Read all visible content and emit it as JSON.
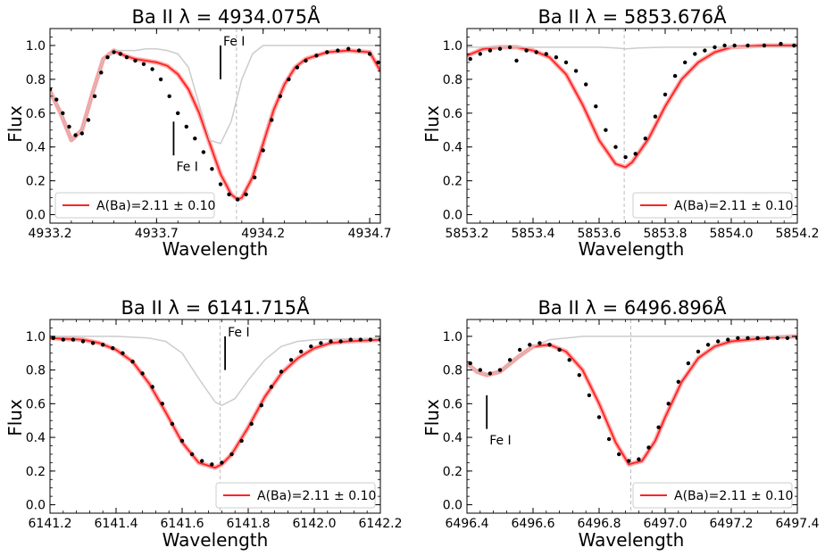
{
  "chart_data": [
    {
      "type": "line",
      "title": "Ba II λ = 4934.075Å",
      "xlabel": "Wavelength",
      "ylabel": "Flux",
      "xlim": [
        4933.2,
        4934.75
      ],
      "ylim": [
        -0.05,
        1.1
      ],
      "xticks": [
        4933.2,
        4933.7,
        4934.2,
        4934.7
      ],
      "xtick_labels": [
        "4933.2",
        "4933.7",
        "4934.2",
        "4934.7"
      ],
      "yticks": [
        0.0,
        0.2,
        0.4,
        0.6,
        0.8,
        1.0
      ],
      "ytick_labels": [
        "0.0",
        "0.2",
        "0.4",
        "0.6",
        "0.8",
        "1.0"
      ],
      "line_center": 4934.075,
      "legend": {
        "label": "A(Ba)=2.11 ± 0.10",
        "position": "lower-left"
      },
      "annotations": [
        {
          "text": "Fe I",
          "x": 4934.0,
          "y_top": 1.0,
          "y_bottom": 0.8,
          "text_y": 1.0
        },
        {
          "text": "Fe I",
          "x": 4933.78,
          "y_top": 0.55,
          "y_bottom": 0.35,
          "text_y": 0.3
        }
      ],
      "series": [
        {
          "name": "A(Ba)=2.11 ± 0.10",
          "role": "fit",
          "color": "#ff2222",
          "x": [
            4933.2,
            4933.25,
            4933.3,
            4933.35,
            4933.4,
            4933.45,
            4933.5,
            4933.55,
            4933.6,
            4933.65,
            4933.7,
            4933.75,
            4933.8,
            4933.85,
            4933.9,
            4933.95,
            4934.0,
            4934.05,
            4934.08,
            4934.1,
            4934.15,
            4934.2,
            4934.25,
            4934.3,
            4934.35,
            4934.4,
            4934.5,
            4934.6,
            4934.7,
            4934.75
          ],
          "y": [
            0.73,
            0.6,
            0.44,
            0.5,
            0.72,
            0.92,
            0.97,
            0.94,
            0.92,
            0.91,
            0.9,
            0.88,
            0.83,
            0.74,
            0.6,
            0.42,
            0.24,
            0.12,
            0.09,
            0.1,
            0.22,
            0.42,
            0.62,
            0.77,
            0.87,
            0.92,
            0.96,
            0.97,
            0.96,
            0.85
          ]
        },
        {
          "name": "",
          "role": "synthetic-no-ba",
          "color": "#cccccc",
          "x": [
            4933.2,
            4933.25,
            4933.3,
            4933.35,
            4933.4,
            4933.45,
            4933.5,
            4933.55,
            4933.6,
            4933.65,
            4933.7,
            4933.75,
            4933.8,
            4933.85,
            4933.9,
            4933.95,
            4934.0,
            4934.05,
            4934.1,
            4934.15,
            4934.2,
            4934.25,
            4934.3,
            4934.4,
            4934.5,
            4934.6,
            4934.7,
            4934.75
          ],
          "y": [
            0.73,
            0.6,
            0.44,
            0.5,
            0.72,
            0.92,
            0.97,
            0.97,
            0.97,
            0.98,
            0.98,
            0.97,
            0.95,
            0.87,
            0.65,
            0.44,
            0.42,
            0.55,
            0.8,
            0.95,
            1.0,
            1.0,
            1.0,
            1.0,
            1.0,
            1.0,
            1.0,
            1.0
          ]
        },
        {
          "name": "",
          "role": "observed",
          "color": "#000000",
          "x": [
            4933.2,
            4933.23,
            4933.26,
            4933.29,
            4933.32,
            4933.35,
            4933.38,
            4933.41,
            4933.44,
            4933.47,
            4933.5,
            4933.53,
            4933.56,
            4933.6,
            4933.64,
            4933.68,
            4933.72,
            4933.76,
            4933.8,
            4933.84,
            4933.88,
            4933.92,
            4933.96,
            4934.0,
            4934.04,
            4934.08,
            4934.12,
            4934.16,
            4934.2,
            4934.24,
            4934.28,
            4934.32,
            4934.36,
            4934.4,
            4934.45,
            4934.5,
            4934.55,
            4934.6,
            4934.65,
            4934.7,
            4934.74
          ],
          "y": [
            0.74,
            0.68,
            0.6,
            0.52,
            0.47,
            0.48,
            0.56,
            0.7,
            0.84,
            0.93,
            0.96,
            0.95,
            0.93,
            0.91,
            0.89,
            0.86,
            0.8,
            0.7,
            0.6,
            0.52,
            0.45,
            0.37,
            0.27,
            0.18,
            0.12,
            0.09,
            0.12,
            0.22,
            0.38,
            0.56,
            0.7,
            0.8,
            0.87,
            0.91,
            0.94,
            0.96,
            0.97,
            0.98,
            0.97,
            0.95,
            0.9
          ]
        }
      ]
    },
    {
      "type": "line",
      "title": "Ba II λ = 5853.676Å",
      "xlabel": "Wavelength",
      "ylabel": "Flux",
      "xlim": [
        5853.2,
        5854.2
      ],
      "ylim": [
        -0.05,
        1.1
      ],
      "xticks": [
        5853.2,
        5853.4,
        5853.6,
        5853.8,
        5854.0,
        5854.2
      ],
      "xtick_labels": [
        "5853.2",
        "5853.4",
        "5853.6",
        "5853.8",
        "5854.0",
        "5854.2"
      ],
      "yticks": [
        0.0,
        0.2,
        0.4,
        0.6,
        0.8,
        1.0
      ],
      "ytick_labels": [
        "0.0",
        "0.2",
        "0.4",
        "0.6",
        "0.8",
        "1.0"
      ],
      "line_center": 5853.676,
      "legend": {
        "label": "A(Ba)=2.11 ± 0.10",
        "position": "lower-right"
      },
      "annotations": [],
      "series": [
        {
          "name": "A(Ba)=2.11 ± 0.10",
          "role": "fit",
          "color": "#ff2222",
          "x": [
            5853.2,
            5853.25,
            5853.3,
            5853.35,
            5853.4,
            5853.45,
            5853.5,
            5853.55,
            5853.6,
            5853.65,
            5853.68,
            5853.7,
            5853.75,
            5853.8,
            5853.85,
            5853.9,
            5853.95,
            5854.0,
            5854.1,
            5854.2
          ],
          "y": [
            0.94,
            0.98,
            0.99,
            0.99,
            0.97,
            0.93,
            0.83,
            0.65,
            0.44,
            0.3,
            0.28,
            0.31,
            0.45,
            0.64,
            0.8,
            0.9,
            0.96,
            0.99,
            1.0,
            1.0
          ]
        },
        {
          "name": "",
          "role": "synthetic-no-ba",
          "color": "#cccccc",
          "x": [
            5853.2,
            5853.3,
            5853.4,
            5853.5,
            5853.6,
            5853.65,
            5853.68,
            5853.72,
            5853.8,
            5853.9,
            5854.0,
            5854.1,
            5854.2
          ],
          "y": [
            0.99,
            0.99,
            0.99,
            0.99,
            0.99,
            0.985,
            0.98,
            0.985,
            0.99,
            0.99,
            0.99,
            0.99,
            0.99
          ]
        },
        {
          "name": "",
          "role": "observed",
          "color": "#000000",
          "x": [
            5853.21,
            5853.24,
            5853.27,
            5853.3,
            5853.33,
            5853.35,
            5853.38,
            5853.41,
            5853.44,
            5853.47,
            5853.5,
            5853.53,
            5853.56,
            5853.59,
            5853.62,
            5853.65,
            5853.68,
            5853.71,
            5853.74,
            5853.77,
            5853.8,
            5853.83,
            5853.86,
            5853.89,
            5853.92,
            5853.95,
            5853.98,
            5854.01,
            5854.05,
            5854.1,
            5854.15,
            5854.19
          ],
          "y": [
            0.92,
            0.95,
            0.97,
            0.98,
            0.99,
            0.91,
            0.97,
            0.96,
            0.95,
            0.93,
            0.9,
            0.85,
            0.77,
            0.64,
            0.5,
            0.4,
            0.34,
            0.36,
            0.45,
            0.58,
            0.71,
            0.82,
            0.9,
            0.95,
            0.97,
            0.99,
            1.0,
            1.0,
            1.0,
            1.0,
            1.01,
            1.0
          ]
        }
      ]
    },
    {
      "type": "line",
      "title": "Ba II λ = 6141.715Å",
      "xlabel": "Wavelength",
      "ylabel": "Flux",
      "xlim": [
        6141.2,
        6142.2
      ],
      "ylim": [
        -0.05,
        1.1
      ],
      "xticks": [
        6141.2,
        6141.4,
        6141.6,
        6141.8,
        6142.0,
        6142.2
      ],
      "xtick_labels": [
        "6141.2",
        "6141.4",
        "6141.6",
        "6141.8",
        "6142.0",
        "6142.2"
      ],
      "yticks": [
        0.0,
        0.2,
        0.4,
        0.6,
        0.8,
        1.0
      ],
      "ytick_labels": [
        "0.0",
        "0.2",
        "0.4",
        "0.6",
        "0.8",
        "1.0"
      ],
      "line_center": 6141.715,
      "legend": {
        "label": "A(Ba)=2.11 ± 0.10",
        "position": "lower-right"
      },
      "annotations": [
        {
          "text": "Fe I",
          "x": 6141.73,
          "y_top": 1.0,
          "y_bottom": 0.8,
          "text_y": 1.0
        }
      ],
      "series": [
        {
          "name": "A(Ba)=2.11 ± 0.10",
          "role": "fit",
          "color": "#ff2222",
          "x": [
            6141.2,
            6141.3,
            6141.35,
            6141.4,
            6141.45,
            6141.5,
            6141.55,
            6141.6,
            6141.65,
            6141.7,
            6141.72,
            6141.75,
            6141.8,
            6141.85,
            6141.9,
            6141.95,
            6142.0,
            6142.05,
            6142.1,
            6142.2
          ],
          "y": [
            0.99,
            0.98,
            0.96,
            0.92,
            0.85,
            0.72,
            0.55,
            0.37,
            0.25,
            0.22,
            0.24,
            0.3,
            0.46,
            0.64,
            0.78,
            0.87,
            0.93,
            0.96,
            0.97,
            0.98
          ]
        },
        {
          "name": "",
          "role": "synthetic-no-ba",
          "color": "#cccccc",
          "x": [
            6141.2,
            6141.3,
            6141.4,
            6141.5,
            6141.55,
            6141.6,
            6141.65,
            6141.7,
            6141.72,
            6141.76,
            6141.8,
            6141.85,
            6141.9,
            6141.95,
            6142.0,
            6142.1,
            6142.2
          ],
          "y": [
            1.0,
            1.0,
            1.0,
            0.99,
            0.97,
            0.9,
            0.75,
            0.61,
            0.59,
            0.63,
            0.74,
            0.86,
            0.94,
            0.97,
            0.98,
            0.985,
            0.99
          ]
        },
        {
          "name": "",
          "role": "observed",
          "color": "#000000",
          "x": [
            6141.21,
            6141.24,
            6141.27,
            6141.3,
            6141.33,
            6141.36,
            6141.39,
            6141.42,
            6141.45,
            6141.48,
            6141.51,
            6141.54,
            6141.57,
            6141.6,
            6141.63,
            6141.66,
            6141.69,
            6141.72,
            6141.75,
            6141.78,
            6141.81,
            6141.84,
            6141.87,
            6141.9,
            6141.93,
            6141.96,
            6141.99,
            6142.02,
            6142.05,
            6142.08,
            6142.11,
            6142.14,
            6142.17,
            6142.2
          ],
          "y": [
            0.99,
            0.98,
            0.98,
            0.97,
            0.96,
            0.95,
            0.93,
            0.9,
            0.85,
            0.78,
            0.7,
            0.6,
            0.48,
            0.38,
            0.3,
            0.26,
            0.24,
            0.25,
            0.3,
            0.38,
            0.48,
            0.59,
            0.7,
            0.79,
            0.86,
            0.91,
            0.94,
            0.96,
            0.97,
            0.97,
            0.98,
            0.98,
            0.98,
            0.98
          ]
        }
      ]
    },
    {
      "type": "line",
      "title": "Ba II λ = 6496.896Å",
      "xlabel": "Wavelength",
      "ylabel": "Flux",
      "xlim": [
        6496.4,
        6497.4
      ],
      "ylim": [
        -0.05,
        1.1
      ],
      "xticks": [
        6496.4,
        6496.6,
        6496.8,
        6497.0,
        6497.2,
        6497.4
      ],
      "xtick_labels": [
        "6496.4",
        "6496.6",
        "6496.8",
        "6497.0",
        "6497.2",
        "6497.4"
      ],
      "yticks": [
        0.0,
        0.2,
        0.4,
        0.6,
        0.8,
        1.0
      ],
      "ytick_labels": [
        "0.0",
        "0.2",
        "0.4",
        "0.6",
        "0.8",
        "1.0"
      ],
      "line_center": 6496.896,
      "legend": {
        "label": "A(Ba)=2.11 ± 0.10",
        "position": "lower-right"
      },
      "annotations": [
        {
          "text": "Fe I",
          "x": 6496.46,
          "y_top": 0.65,
          "y_bottom": 0.45,
          "text_y": 0.4
        }
      ],
      "series": [
        {
          "name": "A(Ba)=2.11 ± 0.10",
          "role": "fit",
          "color": "#ff2222",
          "x": [
            6496.4,
            6496.43,
            6496.46,
            6496.5,
            6496.55,
            6496.6,
            6496.65,
            6496.7,
            6496.75,
            6496.8,
            6496.85,
            6496.89,
            6496.93,
            6496.97,
            6497.0,
            6497.05,
            6497.1,
            6497.15,
            6497.2,
            6497.3,
            6497.4
          ],
          "y": [
            0.84,
            0.79,
            0.77,
            0.79,
            0.87,
            0.94,
            0.95,
            0.91,
            0.8,
            0.6,
            0.37,
            0.24,
            0.26,
            0.38,
            0.52,
            0.73,
            0.87,
            0.94,
            0.97,
            0.99,
            1.0
          ]
        },
        {
          "name": "",
          "role": "synthetic-no-ba",
          "color": "#cccccc",
          "x": [
            6496.4,
            6496.43,
            6496.46,
            6496.5,
            6496.55,
            6496.6,
            6496.65,
            6496.7,
            6496.75,
            6496.8,
            6496.85,
            6496.9,
            6497.0,
            6497.2,
            6497.4
          ],
          "y": [
            0.84,
            0.79,
            0.77,
            0.79,
            0.87,
            0.94,
            0.98,
            0.99,
            1.0,
            1.0,
            1.0,
            1.0,
            1.0,
            1.0,
            1.0
          ]
        },
        {
          "name": "",
          "role": "observed",
          "color": "#000000",
          "x": [
            6496.41,
            6496.44,
            6496.47,
            6496.5,
            6496.53,
            6496.56,
            6496.59,
            6496.62,
            6496.65,
            6496.68,
            6496.71,
            6496.74,
            6496.77,
            6496.8,
            6496.83,
            6496.86,
            6496.89,
            6496.92,
            6496.95,
            6496.98,
            6497.01,
            6497.04,
            6497.07,
            6497.1,
            6497.13,
            6497.16,
            6497.19,
            6497.22,
            6497.25,
            6497.28,
            6497.31,
            6497.34,
            6497.37,
            6497.4
          ],
          "y": [
            0.84,
            0.8,
            0.78,
            0.8,
            0.86,
            0.92,
            0.95,
            0.96,
            0.95,
            0.92,
            0.86,
            0.77,
            0.65,
            0.52,
            0.39,
            0.3,
            0.26,
            0.27,
            0.34,
            0.46,
            0.6,
            0.73,
            0.84,
            0.91,
            0.95,
            0.97,
            0.98,
            0.99,
            0.99,
            0.99,
            0.99,
            0.99,
            0.99,
            0.99
          ]
        }
      ]
    }
  ]
}
